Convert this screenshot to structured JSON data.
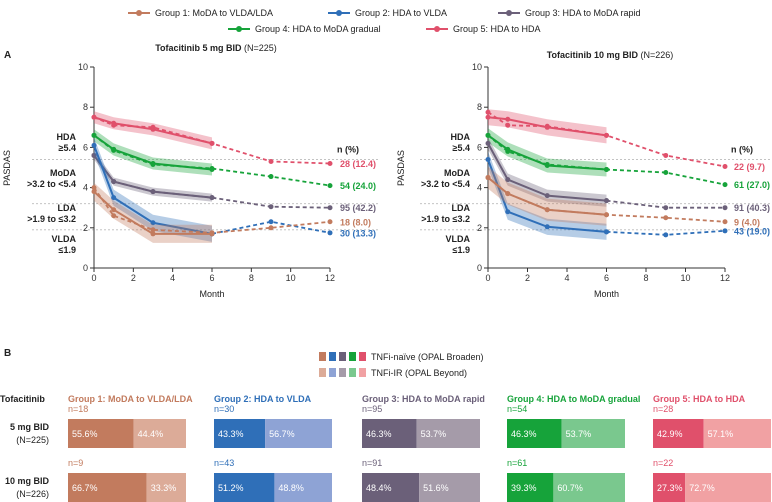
{
  "colors": {
    "g1": "#c27b5e",
    "g2": "#2f6fb8",
    "g3": "#6b6079",
    "g4": "#16a33a",
    "g5": "#e0506b",
    "g1l": "#dcab98",
    "g2l": "#8ea3d5",
    "g3l": "#a59ba9",
    "g4l": "#7ac88e",
    "g5l": "#f1a1a3"
  },
  "legend": [
    {
      "key": "g1",
      "label": "Group 1: MoDA to VLDA/LDA"
    },
    {
      "key": "g2",
      "label": "Group 2: HDA to VLDA"
    },
    {
      "key": "g3",
      "label": "Group 3: HDA to MoDA rapid"
    },
    {
      "key": "g4",
      "label": "Group 4: HDA to MoDA gradual"
    },
    {
      "key": "g5",
      "label": "Group 5: HDA to HDA"
    }
  ],
  "panel_a_label": "A",
  "panel_b_label": "B",
  "chart_data": [
    {
      "type": "line",
      "title_bold": "Tofacitinib 5 mg BID",
      "title_rest": " (N=225)",
      "xlabel": "Month",
      "ylabel": "PASDAS",
      "xlim": [
        0,
        12
      ],
      "ylim": [
        0,
        10
      ],
      "xticks": [
        0,
        2,
        4,
        6,
        8,
        10,
        12
      ],
      "yticks": [
        0,
        2,
        4,
        6,
        8,
        10
      ],
      "thresholds": [
        5.4,
        3.2,
        1.9
      ],
      "categories": [
        [
          "HDA",
          "≥5.4"
        ],
        [
          "MoDA",
          ">3.2 to <5.4"
        ],
        [
          "LDA",
          ">1.9 to ≤3.2"
        ],
        [
          "VLDA",
          "≤1.9"
        ]
      ],
      "n_header": "n (%)",
      "series": [
        {
          "key": "g5",
          "solid_x": [
            0,
            1,
            3,
            6
          ],
          "solid_y": [
            7.5,
            7.2,
            6.9,
            6.2
          ],
          "ci": 0.3,
          "dashed_x": [
            0,
            1,
            3,
            6,
            9,
            12
          ],
          "dashed_y": [
            7.5,
            7.1,
            7.0,
            6.2,
            5.3,
            5.2
          ],
          "end_label": "28 (12.4)"
        },
        {
          "key": "g4",
          "solid_x": [
            0,
            1,
            3,
            6
          ],
          "solid_y": [
            6.6,
            5.9,
            5.2,
            4.9
          ],
          "ci": 0.3,
          "dashed_x": [
            0,
            1,
            3,
            6,
            9,
            12
          ],
          "dashed_y": [
            6.6,
            5.85,
            5.15,
            4.95,
            4.55,
            4.1
          ],
          "end_label": "54 (24.0)"
        },
        {
          "key": "g3",
          "solid_x": [
            0,
            1,
            3,
            6
          ],
          "solid_y": [
            5.6,
            4.3,
            3.8,
            3.5
          ],
          "ci": 0.2,
          "dashed_x": [
            0,
            1,
            3,
            6,
            9,
            12
          ],
          "dashed_y": [
            5.6,
            4.3,
            3.8,
            3.5,
            3.05,
            3.0
          ],
          "end_label": "95 (42.2)"
        },
        {
          "key": "g2",
          "solid_x": [
            0,
            1,
            3,
            6
          ],
          "solid_y": [
            6.1,
            3.5,
            2.25,
            1.7
          ],
          "ci": 0.4,
          "dashed_x": [
            6,
            9,
            12
          ],
          "dashed_y": [
            1.7,
            2.3,
            1.75
          ],
          "end_label": "30 (13.3)"
        },
        {
          "key": "g1",
          "solid_x": [
            0,
            1,
            3,
            6
          ],
          "solid_y": [
            3.8,
            2.9,
            1.7,
            1.7
          ],
          "ci": 0.45,
          "dashed_x": [
            0,
            1,
            3,
            6,
            9,
            12
          ],
          "dashed_y": [
            4.0,
            2.6,
            1.9,
            1.75,
            2.0,
            2.3
          ],
          "end_label": "18 (8.0)"
        }
      ]
    },
    {
      "type": "line",
      "title_bold": "Tofacitinib 10 mg BID",
      "title_rest": " (N=226)",
      "xlabel": "Month",
      "ylabel": "PASDAS",
      "xlim": [
        0,
        12
      ],
      "ylim": [
        0,
        10
      ],
      "xticks": [
        0,
        2,
        4,
        6,
        8,
        10,
        12
      ],
      "yticks": [
        0,
        2,
        4,
        6,
        8,
        10
      ],
      "thresholds": [
        5.4,
        3.2,
        1.9
      ],
      "categories": [
        [
          "HDA",
          "≥5.4"
        ],
        [
          "MoDA",
          ">3.2 to <5.4"
        ],
        [
          "LDA",
          ">1.9 to ≤3.2"
        ],
        [
          "VLDA",
          "≤1.9"
        ]
      ],
      "n_header": "n (%)",
      "series": [
        {
          "key": "g5",
          "solid_x": [
            0,
            1,
            3,
            6
          ],
          "solid_y": [
            7.5,
            7.4,
            7.0,
            6.6
          ],
          "ci": 0.4,
          "dashed_x": [
            0,
            1,
            3,
            6,
            9,
            12
          ],
          "dashed_y": [
            7.75,
            7.1,
            7.05,
            6.6,
            5.6,
            5.05
          ],
          "end_label": "22 (9.7)"
        },
        {
          "key": "g4",
          "solid_x": [
            0,
            1,
            3,
            6
          ],
          "solid_y": [
            6.6,
            5.9,
            5.1,
            4.9
          ],
          "ci": 0.35,
          "dashed_x": [
            0,
            1,
            3,
            6,
            9,
            12
          ],
          "dashed_y": [
            6.6,
            5.8,
            5.15,
            4.9,
            4.75,
            4.15
          ],
          "end_label": "61 (27.0)"
        },
        {
          "key": "g3",
          "solid_x": [
            0,
            1,
            3,
            6
          ],
          "solid_y": [
            6.2,
            4.4,
            3.6,
            3.35
          ],
          "ci": 0.3,
          "dashed_x": [
            6,
            9,
            12
          ],
          "dashed_y": [
            3.35,
            3.0,
            3.0
          ],
          "end_label": "91 (40.3)"
        },
        {
          "key": "g2",
          "solid_x": [
            0,
            1,
            3,
            6
          ],
          "solid_y": [
            5.4,
            2.8,
            2.05,
            1.8
          ],
          "ci": 0.4,
          "dashed_x": [
            6,
            9,
            12
          ],
          "dashed_y": [
            1.8,
            1.65,
            1.85
          ],
          "end_label": "43 (19.0)"
        },
        {
          "key": "g1",
          "solid_x": [
            0,
            1,
            3,
            6
          ],
          "solid_y": [
            4.5,
            3.7,
            2.9,
            2.65
          ],
          "ci": 0.55,
          "dashed_x": [
            0,
            1,
            3,
            6,
            9,
            12
          ],
          "dashed_y": [
            4.5,
            3.7,
            2.9,
            2.65,
            2.5,
            2.3
          ],
          "end_label": "9 (4.0)"
        }
      ]
    },
    {
      "type": "bar",
      "stacked": true,
      "row_header": "Tofacitinib",
      "legend": [
        "TNFi-naïve (OPAL Broaden)",
        "TNFi-IR (OPAL Beyond)"
      ],
      "rows": [
        [
          "5 mg BID",
          "(N=225)"
        ],
        [
          "10 mg BID",
          "(N=226)"
        ]
      ],
      "groups": [
        {
          "key": "g1",
          "title": "Group 1: MoDA to VLDA/LDA",
          "n": [
            "n=18",
            "n=9"
          ],
          "naive": [
            55.6,
            66.7
          ],
          "ir": [
            44.4,
            33.3
          ]
        },
        {
          "key": "g2",
          "title": "Group 2: HDA to VLDA",
          "n": [
            "n=30",
            "n=43"
          ],
          "naive": [
            43.3,
            51.2
          ],
          "ir": [
            56.7,
            48.8
          ]
        },
        {
          "key": "g3",
          "title": "Group 3: HDA to MoDA rapid",
          "n": [
            "n=95",
            "n=91"
          ],
          "naive": [
            46.3,
            48.4
          ],
          "ir": [
            53.7,
            51.6
          ]
        },
        {
          "key": "g4",
          "title": "Group 4: HDA to MoDA gradual",
          "n": [
            "n=54",
            "n=61"
          ],
          "naive": [
            46.3,
            39.3
          ],
          "ir": [
            53.7,
            60.7
          ]
        },
        {
          "key": "g5",
          "title": "Group 5: HDA to HDA",
          "n": [
            "n=28",
            "n=22"
          ],
          "naive": [
            42.9,
            27.3
          ],
          "ir": [
            57.1,
            72.7
          ]
        }
      ]
    }
  ]
}
